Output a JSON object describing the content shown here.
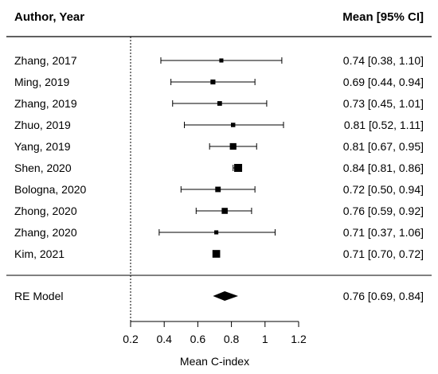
{
  "chart_data": {
    "type": "forest",
    "header": {
      "left": "Author, Year",
      "right": "Mean [95% CI]"
    },
    "studies": [
      {
        "label": "Zhang, 2017",
        "mean": 0.74,
        "lo": 0.38,
        "hi": 1.1,
        "ci_text": "0.74 [0.38, 1.10]",
        "weight": 0.3
      },
      {
        "label": "Ming, 2019",
        "mean": 0.69,
        "lo": 0.44,
        "hi": 0.94,
        "ci_text": "0.69 [0.44, 0.94]",
        "weight": 0.45
      },
      {
        "label": "Zhang, 2019",
        "mean": 0.73,
        "lo": 0.45,
        "hi": 1.01,
        "ci_text": "0.73 [0.45, 1.01]",
        "weight": 0.4
      },
      {
        "label": "Zhuo, 2019",
        "mean": 0.81,
        "lo": 0.52,
        "hi": 1.11,
        "ci_text": "0.81 [0.52, 1.11]",
        "weight": 0.35
      },
      {
        "label": "Yang, 2019",
        "mean": 0.81,
        "lo": 0.67,
        "hi": 0.95,
        "ci_text": "0.81 [0.67, 0.95]",
        "weight": 0.75
      },
      {
        "label": "Shen, 2020",
        "mean": 0.84,
        "lo": 0.81,
        "hi": 0.86,
        "ci_text": "0.84 [0.81, 0.86]",
        "weight": 1.0
      },
      {
        "label": "Bologna, 2020",
        "mean": 0.72,
        "lo": 0.5,
        "hi": 0.94,
        "ci_text": "0.72 [0.50, 0.94]",
        "weight": 0.55
      },
      {
        "label": "Zhong, 2020",
        "mean": 0.76,
        "lo": 0.59,
        "hi": 0.92,
        "ci_text": "0.76 [0.59, 0.92]",
        "weight": 0.65
      },
      {
        "label": "Zhang, 2020",
        "mean": 0.71,
        "lo": 0.37,
        "hi": 1.06,
        "ci_text": "0.71 [0.37, 1.06]",
        "weight": 0.3
      },
      {
        "label": "Kim, 2021",
        "mean": 0.71,
        "lo": 0.7,
        "hi": 0.72,
        "ci_text": "0.71 [0.70, 0.72]",
        "weight": 0.95
      }
    ],
    "summary": {
      "label": "RE Model",
      "mean": 0.76,
      "lo": 0.69,
      "hi": 0.84,
      "ci_text": "0.76 [0.69, 0.84]"
    },
    "xaxis": {
      "ticks": [
        0.2,
        0.4,
        0.6,
        0.8,
        1.0,
        1.2
      ],
      "tick_labels": [
        "0.2",
        "0.4",
        "0.6",
        "0.8",
        "1",
        "1.2"
      ],
      "label": "Mean C-index",
      "range": [
        0.2,
        1.2
      ]
    },
    "reference_line": 0.2,
    "colors": {
      "ink": "#000000",
      "background": "#ffffff"
    }
  }
}
